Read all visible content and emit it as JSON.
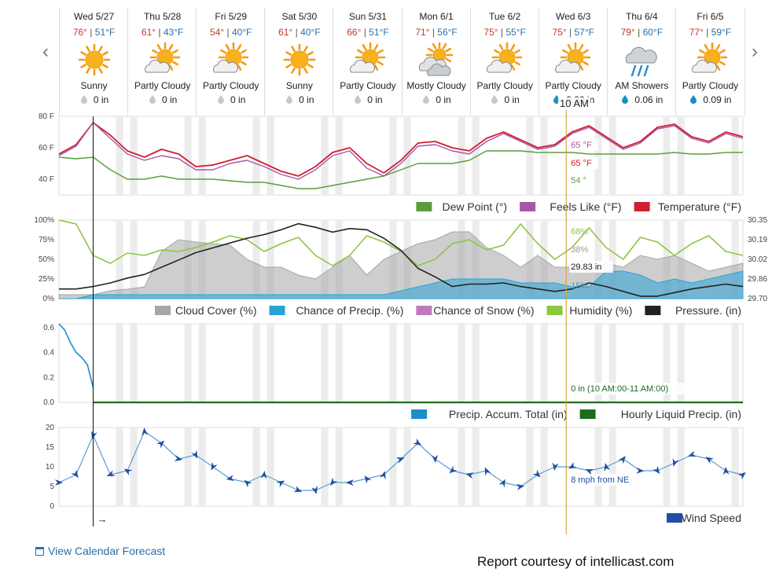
{
  "days": [
    {
      "name": "Wed 5/27",
      "hi": "76°",
      "lo": "51°F",
      "cond": "Sunny",
      "icon": "sun-icon",
      "precip": "0 in",
      "drop": "gray"
    },
    {
      "name": "Thu 5/28",
      "hi": "61°",
      "lo": "43°F",
      "cond": "Partly Cloudy",
      "icon": "partly-cloudy-icon",
      "precip": "0 in",
      "drop": "gray"
    },
    {
      "name": "Fri 5/29",
      "hi": "54°",
      "lo": "40°F",
      "cond": "Partly Cloudy",
      "icon": "partly-cloudy-icon",
      "precip": "0 in",
      "drop": "gray"
    },
    {
      "name": "Sat 5/30",
      "hi": "61°",
      "lo": "40°F",
      "cond": "Sunny",
      "icon": "sun-icon",
      "precip": "0 in",
      "drop": "gray"
    },
    {
      "name": "Sun 5/31",
      "hi": "66°",
      "lo": "51°F",
      "cond": "Partly Cloudy",
      "icon": "partly-cloudy-icon",
      "precip": "0 in",
      "drop": "gray"
    },
    {
      "name": "Mon 6/1",
      "hi": "71°",
      "lo": "56°F",
      "cond": "Mostly Cloudy",
      "icon": "mostly-cloudy-icon",
      "precip": "0 in",
      "drop": "gray"
    },
    {
      "name": "Tue 6/2",
      "hi": "75°",
      "lo": "55°F",
      "cond": "Partly Cloudy",
      "icon": "partly-cloudy-icon",
      "precip": "0 in",
      "drop": "gray"
    },
    {
      "name": "Wed 6/3",
      "hi": "75°",
      "lo": "57°F",
      "cond": "Partly Cloudy",
      "icon": "partly-cloudy-icon",
      "precip": "0.00 in",
      "drop": "blue"
    },
    {
      "name": "Thu 6/4",
      "hi": "79°",
      "lo": "60°F",
      "cond": "AM Showers",
      "icon": "rain-cloud-icon",
      "precip": "0.06 in",
      "drop": "blue"
    },
    {
      "name": "Fri 6/5",
      "hi": "77°",
      "lo": "59°F",
      "cond": "Partly Cloudy",
      "icon": "partly-cloudy-icon",
      "precip": "0.09 in",
      "drop": "blue"
    }
  ],
  "tooltip": {
    "time": "10 AM",
    "feels": "65 °F",
    "temp": "65 °F",
    "dew": "54 °",
    "humidity": "68%",
    "cloud": "38%",
    "pressure": "29.83 in",
    "precip_chance": "15%",
    "precip": "0 in (10 AM:00-11 AM:00)",
    "wind": "8 mph from NE"
  },
  "links": {
    "calendar": "View Calendar Forecast",
    "courtesy": "Report courtesy of intellicast.com"
  },
  "now_marker": "→",
  "colors": {
    "temperature": "#d0202e",
    "feels_like": "#a857a8",
    "dew_point": "#5a9e3c",
    "cloud": "#a6a6a6",
    "precip_chance": "#29a3d6",
    "snow": "#c07bc0",
    "humidity": "#8dc63f",
    "pressure": "#222222",
    "accum": "#1a8fc7",
    "hourly": "#1e6b1e",
    "wind": "#1f4fa3",
    "now": "#111111",
    "cursor": "#d9a441"
  },
  "chart_data": [
    {
      "type": "line",
      "ylim": [
        30,
        80
      ],
      "yticks": [
        "40 F",
        "60 F",
        "80 F"
      ],
      "x": [
        0,
        6,
        12,
        18,
        24,
        30,
        36,
        42,
        48,
        54,
        60,
        66,
        72,
        78,
        84,
        90,
        96,
        102,
        108,
        114,
        120,
        126,
        132,
        138,
        144,
        150,
        156,
        162,
        168,
        174,
        180,
        186,
        192,
        198,
        204,
        210,
        216,
        222,
        228,
        234,
        240
      ],
      "series": [
        {
          "name": "Temperature (°F)",
          "color_key": "temperature",
          "values": [
            56,
            62,
            76,
            68,
            58,
            54,
            59,
            56,
            48,
            49,
            52,
            55,
            50,
            45,
            42,
            48,
            57,
            60,
            50,
            44,
            52,
            63,
            64,
            60,
            58,
            66,
            70,
            65,
            60,
            62,
            70,
            74,
            67,
            60,
            64,
            73,
            75,
            67,
            64,
            70,
            67
          ]
        },
        {
          "name": "Feels Like (°F)",
          "color_key": "feels_like",
          "values": [
            55,
            61,
            76,
            66,
            56,
            52,
            55,
            53,
            46,
            46,
            50,
            52,
            48,
            43,
            40,
            46,
            55,
            58,
            47,
            42,
            50,
            61,
            62,
            58,
            56,
            64,
            69,
            64,
            59,
            61,
            69,
            73,
            66,
            59,
            63,
            72,
            74,
            66,
            63,
            69,
            66
          ]
        },
        {
          "name": "Dew Point (°)",
          "color_key": "dew_point",
          "values": [
            54,
            53,
            54,
            46,
            40,
            40,
            42,
            40,
            40,
            40,
            39,
            38,
            38,
            36,
            34,
            34,
            36,
            38,
            40,
            42,
            46,
            50,
            50,
            50,
            52,
            58,
            58,
            58,
            57,
            57,
            57,
            56,
            56,
            56,
            56,
            56,
            57,
            56,
            56,
            57,
            57
          ]
        }
      ]
    },
    {
      "type": "area",
      "ylim": [
        0,
        100
      ],
      "yticks_left": [
        "0%",
        "25%",
        "50%",
        "75%",
        "100%"
      ],
      "yticks_right": [
        "29.70",
        "29.86",
        "30.02",
        "30.19",
        "30.35"
      ],
      "x": [
        0,
        6,
        12,
        18,
        24,
        30,
        36,
        42,
        48,
        54,
        60,
        66,
        72,
        78,
        84,
        90,
        96,
        102,
        108,
        114,
        120,
        126,
        132,
        138,
        144,
        150,
        156,
        162,
        168,
        174,
        180,
        186,
        192,
        198,
        204,
        210,
        216,
        222,
        228,
        234,
        240
      ],
      "series": [
        {
          "name": "Cloud Cover (%)",
          "color_key": "cloud",
          "values": [
            5,
            5,
            5,
            10,
            12,
            15,
            60,
            75,
            72,
            70,
            68,
            50,
            40,
            40,
            30,
            25,
            40,
            55,
            30,
            50,
            60,
            70,
            75,
            85,
            85,
            65,
            55,
            40,
            55,
            40,
            40,
            38,
            45,
            40,
            55,
            50,
            55,
            45,
            35,
            40,
            45
          ]
        },
        {
          "name": "Chance of Precip. (%)",
          "color_key": "precip_chance",
          "values": [
            0,
            0,
            5,
            5,
            5,
            5,
            5,
            5,
            5,
            5,
            5,
            5,
            5,
            5,
            5,
            5,
            5,
            5,
            5,
            5,
            10,
            15,
            20,
            25,
            25,
            25,
            25,
            20,
            20,
            20,
            15,
            15,
            35,
            35,
            30,
            20,
            25,
            20,
            25,
            30,
            35
          ]
        },
        {
          "name": "Chance of Snow (%)",
          "color_key": "snow",
          "values": [
            0,
            0,
            0,
            0,
            0,
            0,
            0,
            0,
            0,
            0,
            0,
            0,
            0,
            0,
            0,
            0,
            0,
            0,
            0,
            0,
            0,
            0,
            0,
            0,
            0,
            0,
            0,
            0,
            0,
            0,
            0,
            0,
            0,
            0,
            0,
            0,
            0,
            0,
            0,
            0,
            0
          ]
        },
        {
          "name": "Humidity (%)",
          "color_key": "humidity",
          "values": [
            100,
            95,
            55,
            45,
            58,
            55,
            62,
            60,
            65,
            72,
            80,
            75,
            60,
            70,
            78,
            55,
            42,
            55,
            80,
            72,
            60,
            42,
            50,
            70,
            75,
            62,
            68,
            95,
            70,
            50,
            65,
            90,
            65,
            50,
            78,
            72,
            55,
            70,
            80,
            60,
            55
          ]
        },
        {
          "name": "Pressure. (in)",
          "color_key": "pressure",
          "values": [
            29.78,
            29.78,
            29.8,
            29.83,
            29.87,
            29.9,
            29.96,
            30.02,
            30.08,
            30.12,
            30.16,
            30.2,
            30.23,
            30.27,
            30.32,
            30.29,
            30.25,
            30.28,
            30.27,
            30.2,
            30.1,
            29.95,
            29.88,
            29.8,
            29.82,
            29.82,
            29.83,
            29.8,
            29.78,
            29.76,
            29.78,
            29.83,
            29.8,
            29.76,
            29.72,
            29.72,
            29.75,
            29.78,
            29.8,
            29.82,
            29.8
          ]
        }
      ]
    },
    {
      "type": "line",
      "ylim": [
        0,
        0.6
      ],
      "yticks": [
        "0.0",
        "0.2",
        "0.4",
        "0.6"
      ],
      "series": [
        {
          "name": "Precip. Accum. Total (in)",
          "color_key": "accum",
          "x": [
            0,
            2,
            4,
            6,
            8,
            10,
            12
          ],
          "values": [
            0.63,
            0.58,
            0.48,
            0.4,
            0.36,
            0.3,
            0.12
          ]
        },
        {
          "name": "Hourly Liquid Precip. (in)",
          "color_key": "hourly",
          "x": [
            12,
            240
          ],
          "values": [
            0,
            0
          ]
        }
      ]
    },
    {
      "type": "line",
      "ylim": [
        0,
        20
      ],
      "yticks": [
        "0",
        "5",
        "10",
        "15",
        "20"
      ],
      "x": [
        0,
        6,
        12,
        18,
        24,
        30,
        36,
        42,
        48,
        54,
        60,
        66,
        72,
        78,
        84,
        90,
        96,
        102,
        108,
        114,
        120,
        126,
        132,
        138,
        144,
        150,
        156,
        162,
        168,
        174,
        180,
        186,
        192,
        198,
        204,
        210,
        216,
        222,
        228,
        234,
        240
      ],
      "series": [
        {
          "name": "Wind Speed",
          "color_key": "wind",
          "values": [
            6,
            8,
            18,
            8,
            9,
            19,
            16,
            12,
            13,
            10,
            7,
            6,
            8,
            6,
            4,
            4,
            6,
            6,
            7,
            8,
            12,
            16,
            12,
            9,
            8,
            9,
            6,
            5,
            8,
            10,
            10,
            9,
            10,
            12,
            9,
            9,
            11,
            13,
            12,
            9,
            8
          ]
        }
      ]
    }
  ]
}
